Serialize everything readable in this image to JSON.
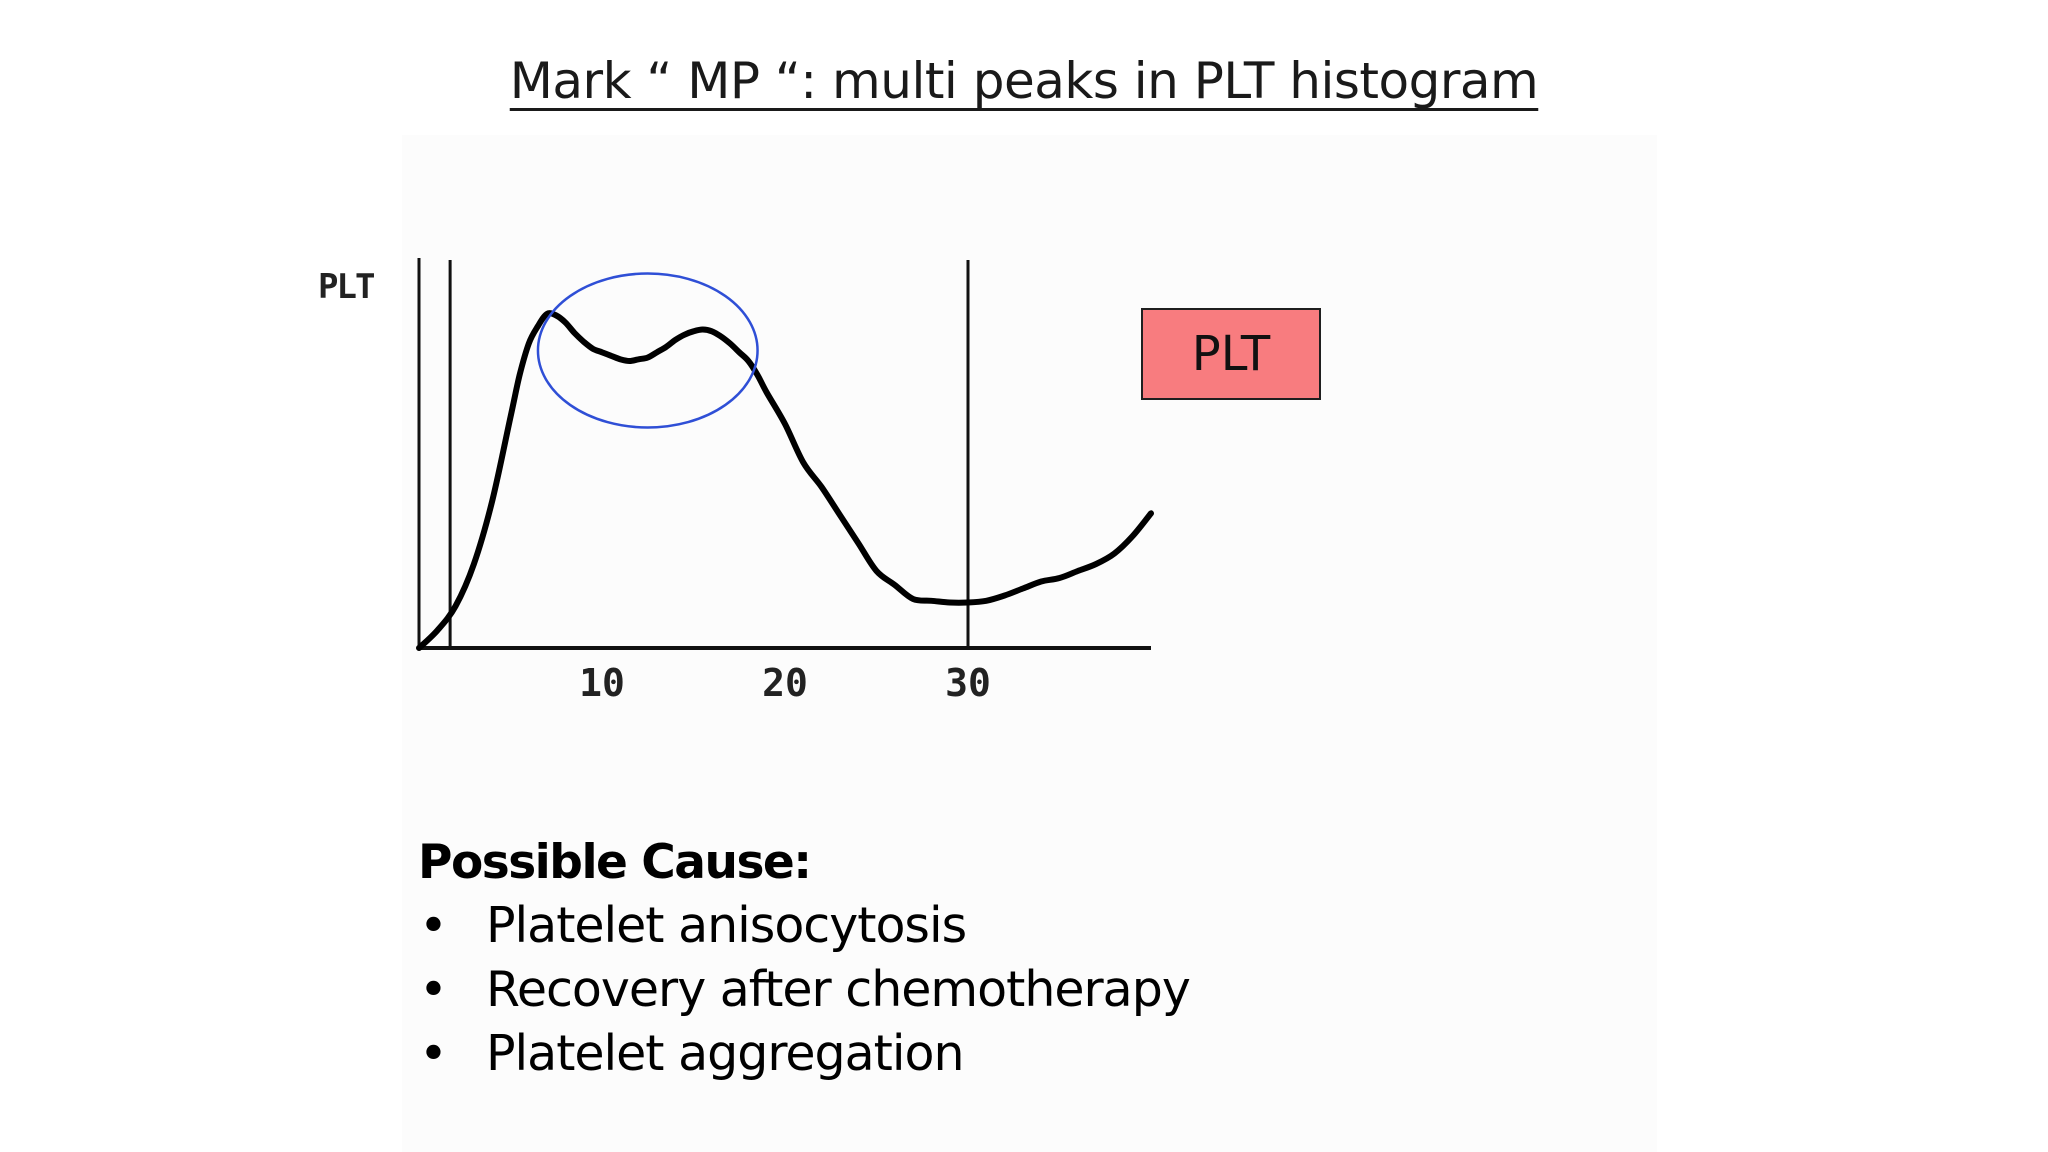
{
  "slide": {
    "title": "Mark “ MP “: multi peaks in PLT histogram"
  },
  "chart_data": {
    "type": "line",
    "title": "",
    "ylabel": "PLT",
    "xlabel": "",
    "xlim": [
      0,
      40
    ],
    "ylim": [
      0,
      100
    ],
    "x_ticks": [
      10,
      20,
      30
    ],
    "discriminators": [
      1.7,
      30
    ],
    "highlight": {
      "shape": "ellipse",
      "x_range": [
        6.5,
        18.5
      ],
      "y_range": [
        63,
        107
      ],
      "color": "#2f4fd6"
    },
    "series": [
      {
        "x": [
          0,
          1,
          2,
          3,
          4,
          5,
          5.5,
          6,
          6.5,
          7,
          7.5,
          8,
          8.5,
          9,
          9.5,
          10,
          10.5,
          11,
          11.5,
          12,
          12.5,
          13,
          13.5,
          14,
          14.5,
          15,
          15.5,
          16,
          16.5,
          17,
          17.5,
          18,
          18.5,
          19,
          20,
          21,
          22,
          23,
          24,
          25,
          26,
          27,
          28,
          29,
          30,
          31,
          32,
          33,
          34,
          35,
          36,
          37,
          38,
          39,
          40
        ],
        "values": [
          0,
          5,
          12,
          24,
          42,
          66,
          78,
          87,
          92,
          95.5,
          95,
          93,
          90,
          87.5,
          85.5,
          84.5,
          83.5,
          82.5,
          82,
          82.5,
          83,
          84.5,
          86,
          88,
          89.5,
          90.5,
          91,
          90.5,
          89,
          87,
          84.5,
          82,
          78,
          73,
          64,
          53,
          46,
          38,
          30,
          22,
          18,
          14,
          13.5,
          13,
          13,
          13.5,
          15,
          17,
          19,
          20,
          22,
          24,
          27,
          32,
          38.5
        ]
      }
    ]
  },
  "plt_label": "PLT",
  "causes": {
    "heading": "Possible Cause:",
    "bullet": "•",
    "items": [
      "Platelet anisocytosis",
      "Recovery after chemotherapy",
      "Platelet aggregation"
    ]
  }
}
